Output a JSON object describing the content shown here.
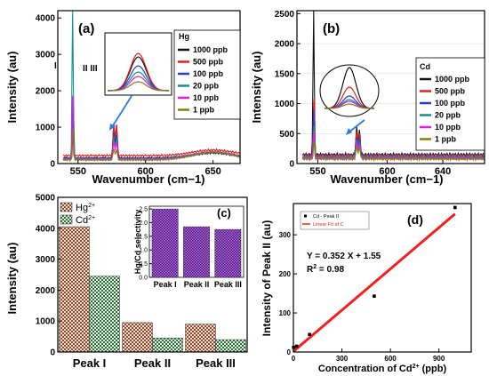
{
  "chart_data": [
    {
      "panel": "(a)",
      "type": "line",
      "xlabel": "Wavenumber (cm−1)",
      "ylabel": "Intensity (au)",
      "xlim": [
        535,
        670
      ],
      "ylim": [
        0,
        4200
      ],
      "xticks": [
        550,
        600,
        650
      ],
      "yticks": [
        0,
        1000,
        2000,
        3000,
        4000
      ],
      "legend_title": "Hg",
      "legend_position": "top-right",
      "peak_labels": [
        "I",
        "II III"
      ],
      "series": [
        {
          "name": "1000 ppb",
          "color": "#111111",
          "peak_I": 1000,
          "peak_II": 950,
          "peak_III": 900,
          "baseline": 150
        },
        {
          "name": "500 ppb",
          "color": "#e02020",
          "peak_I": 800,
          "peak_II": 900,
          "peak_III": 850,
          "baseline": 220
        },
        {
          "name": "100 ppb",
          "color": "#2040d0",
          "peak_I": 1500,
          "peak_II": 700,
          "peak_III": 650,
          "baseline": 140
        },
        {
          "name": "20 ppb",
          "color": "#14908a",
          "peak_I": 4050,
          "peak_II": 600,
          "peak_III": 550,
          "baseline": 130
        },
        {
          "name": "10 ppb",
          "color": "#e020e0",
          "peak_I": 2000,
          "peak_II": 500,
          "peak_III": 480,
          "baseline": 120
        },
        {
          "name": "1 ppb",
          "color": "#8a7a10",
          "peak_I": 900,
          "peak_II": 300,
          "peak_III": 280,
          "baseline": 100
        }
      ]
    },
    {
      "panel": "(b)",
      "type": "line",
      "xlabel": "Wavenumber (cm−1)",
      "ylabel": "Intensity (au)",
      "xlim": [
        535,
        670
      ],
      "ylim": [
        0,
        2550
      ],
      "xticks": [
        550,
        600,
        640
      ],
      "yticks": [
        0,
        500,
        1000,
        1500,
        2000,
        2500
      ],
      "legend_title": "Cd",
      "legend_position": "right",
      "series": [
        {
          "name": "1000 ppb",
          "color": "#111111",
          "peak_I": 2450,
          "peak_II": 450,
          "baseline": 150
        },
        {
          "name": "500 ppb",
          "color": "#e02020",
          "peak_I": 1050,
          "peak_II": 400,
          "baseline": 130
        },
        {
          "name": "100 ppb",
          "color": "#2040d0",
          "peak_I": 800,
          "peak_II": 350,
          "baseline": 110
        },
        {
          "name": "20 ppb",
          "color": "#14908a",
          "peak_I": 600,
          "peak_II": 300,
          "baseline": 100
        },
        {
          "name": "10 ppb",
          "color": "#e020e0",
          "peak_I": 450,
          "peak_II": 250,
          "baseline": 90
        },
        {
          "name": "1 ppb",
          "color": "#8a7a10",
          "peak_I": 300,
          "peak_II": 200,
          "baseline": 80
        }
      ]
    },
    {
      "panel": "(c)",
      "type": "bar",
      "ylabel": "Intensity (au)",
      "ylim": [
        0,
        5000
      ],
      "yticks": [
        0,
        1000,
        2000,
        3000,
        4000,
        5000
      ],
      "categories": [
        "Peak I",
        "Peak II",
        "Peak III"
      ],
      "legend_position": "top-left",
      "series": [
        {
          "name": "Hg2+",
          "label_base": "Hg",
          "label_sup": "2+",
          "values": [
            4050,
            950,
            900
          ]
        },
        {
          "name": "Cd2+",
          "label_base": "Cd",
          "label_sup": "2+",
          "values": [
            2450,
            450,
            400
          ]
        }
      ],
      "inset": {
        "type": "bar",
        "ylabel": "Hg/Cd selectivity",
        "ylim": [
          0,
          2.6
        ],
        "yticks": [
          0.0,
          0.5,
          1.0,
          1.5,
          2.0,
          2.5
        ],
        "ytick_labels": [
          "0.0",
          "0.5",
          "1.0",
          "1.5",
          "2.0",
          "2.5"
        ],
        "categories": [
          "Peak I",
          "Peak II",
          "Peak III"
        ],
        "values": [
          2.5,
          1.85,
          1.75
        ]
      }
    },
    {
      "panel": "(d)",
      "type": "scatter",
      "xlabel_base": "Concentration of Cd",
      "xlabel_sup": "2+",
      "xlabel_unit": " (ppb)",
      "ylabel": "Intensity of Peak II (au)",
      "xlim": [
        0,
        1100
      ],
      "ylim": [
        0,
        380
      ],
      "xticks": [
        0,
        300,
        600,
        900
      ],
      "yticks": [
        0,
        100,
        200,
        300
      ],
      "legend": [
        "Cd - Peak II",
        "Linear Fit of C"
      ],
      "points": [
        {
          "x": 1,
          "y": 12
        },
        {
          "x": 20,
          "y": 15
        },
        {
          "x": 100,
          "y": 45
        },
        {
          "x": 500,
          "y": 143
        },
        {
          "x": 1000,
          "y": 370
        }
      ],
      "fit": {
        "slope": 0.352,
        "intercept": 1.55,
        "label": "Y = 0.352 X + 1.55",
        "r2_base": "R",
        "r2_sup": "2",
        "r2_value": " = 0.98"
      }
    }
  ]
}
